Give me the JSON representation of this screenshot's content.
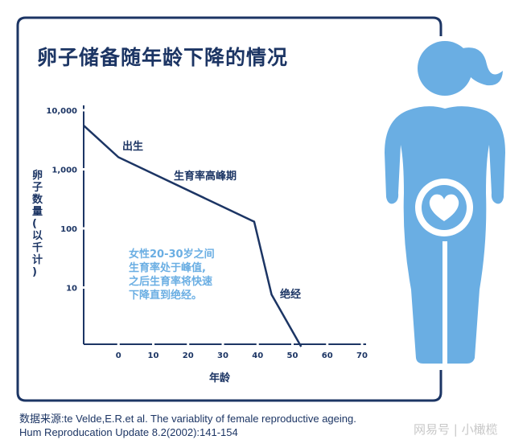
{
  "title": "卵子储备随年龄下降的情况",
  "chart_data": {
    "type": "line",
    "xlabel": "年龄",
    "ylabel": "卵子数量(以千计)",
    "x_ticks": [
      "0",
      "10",
      "20",
      "30",
      "40",
      "50",
      "60",
      "70"
    ],
    "y_ticks": [
      "10",
      "100",
      "1,000",
      "10,000"
    ],
    "y_scale": "log",
    "xlim": [
      -10,
      70
    ],
    "ylim": [
      1,
      10000
    ],
    "x": [
      -10,
      0,
      39,
      44,
      52.5
    ],
    "values": [
      5500,
      1600,
      130,
      7.6,
      1
    ],
    "annotations": [
      "出生",
      "生育率高峰期",
      "绝经"
    ],
    "note": [
      "女性20-30岁之间",
      "生育率处于峰值,",
      "之后生育率将快速",
      "下降直到绝经。"
    ],
    "colors": {
      "line": "#1c3564",
      "note": "#6aaee3"
    }
  },
  "source": {
    "line1": "数据来源:te Velde,E.R.et al. The variablity of female reproductive ageing.",
    "line2": "Hum Reproducation Update 8.2(2002):141-154"
  },
  "watermark": "网易号 | 小橄榄",
  "colors": {
    "navy": "#1c3564",
    "figure": "#6aaee3"
  }
}
